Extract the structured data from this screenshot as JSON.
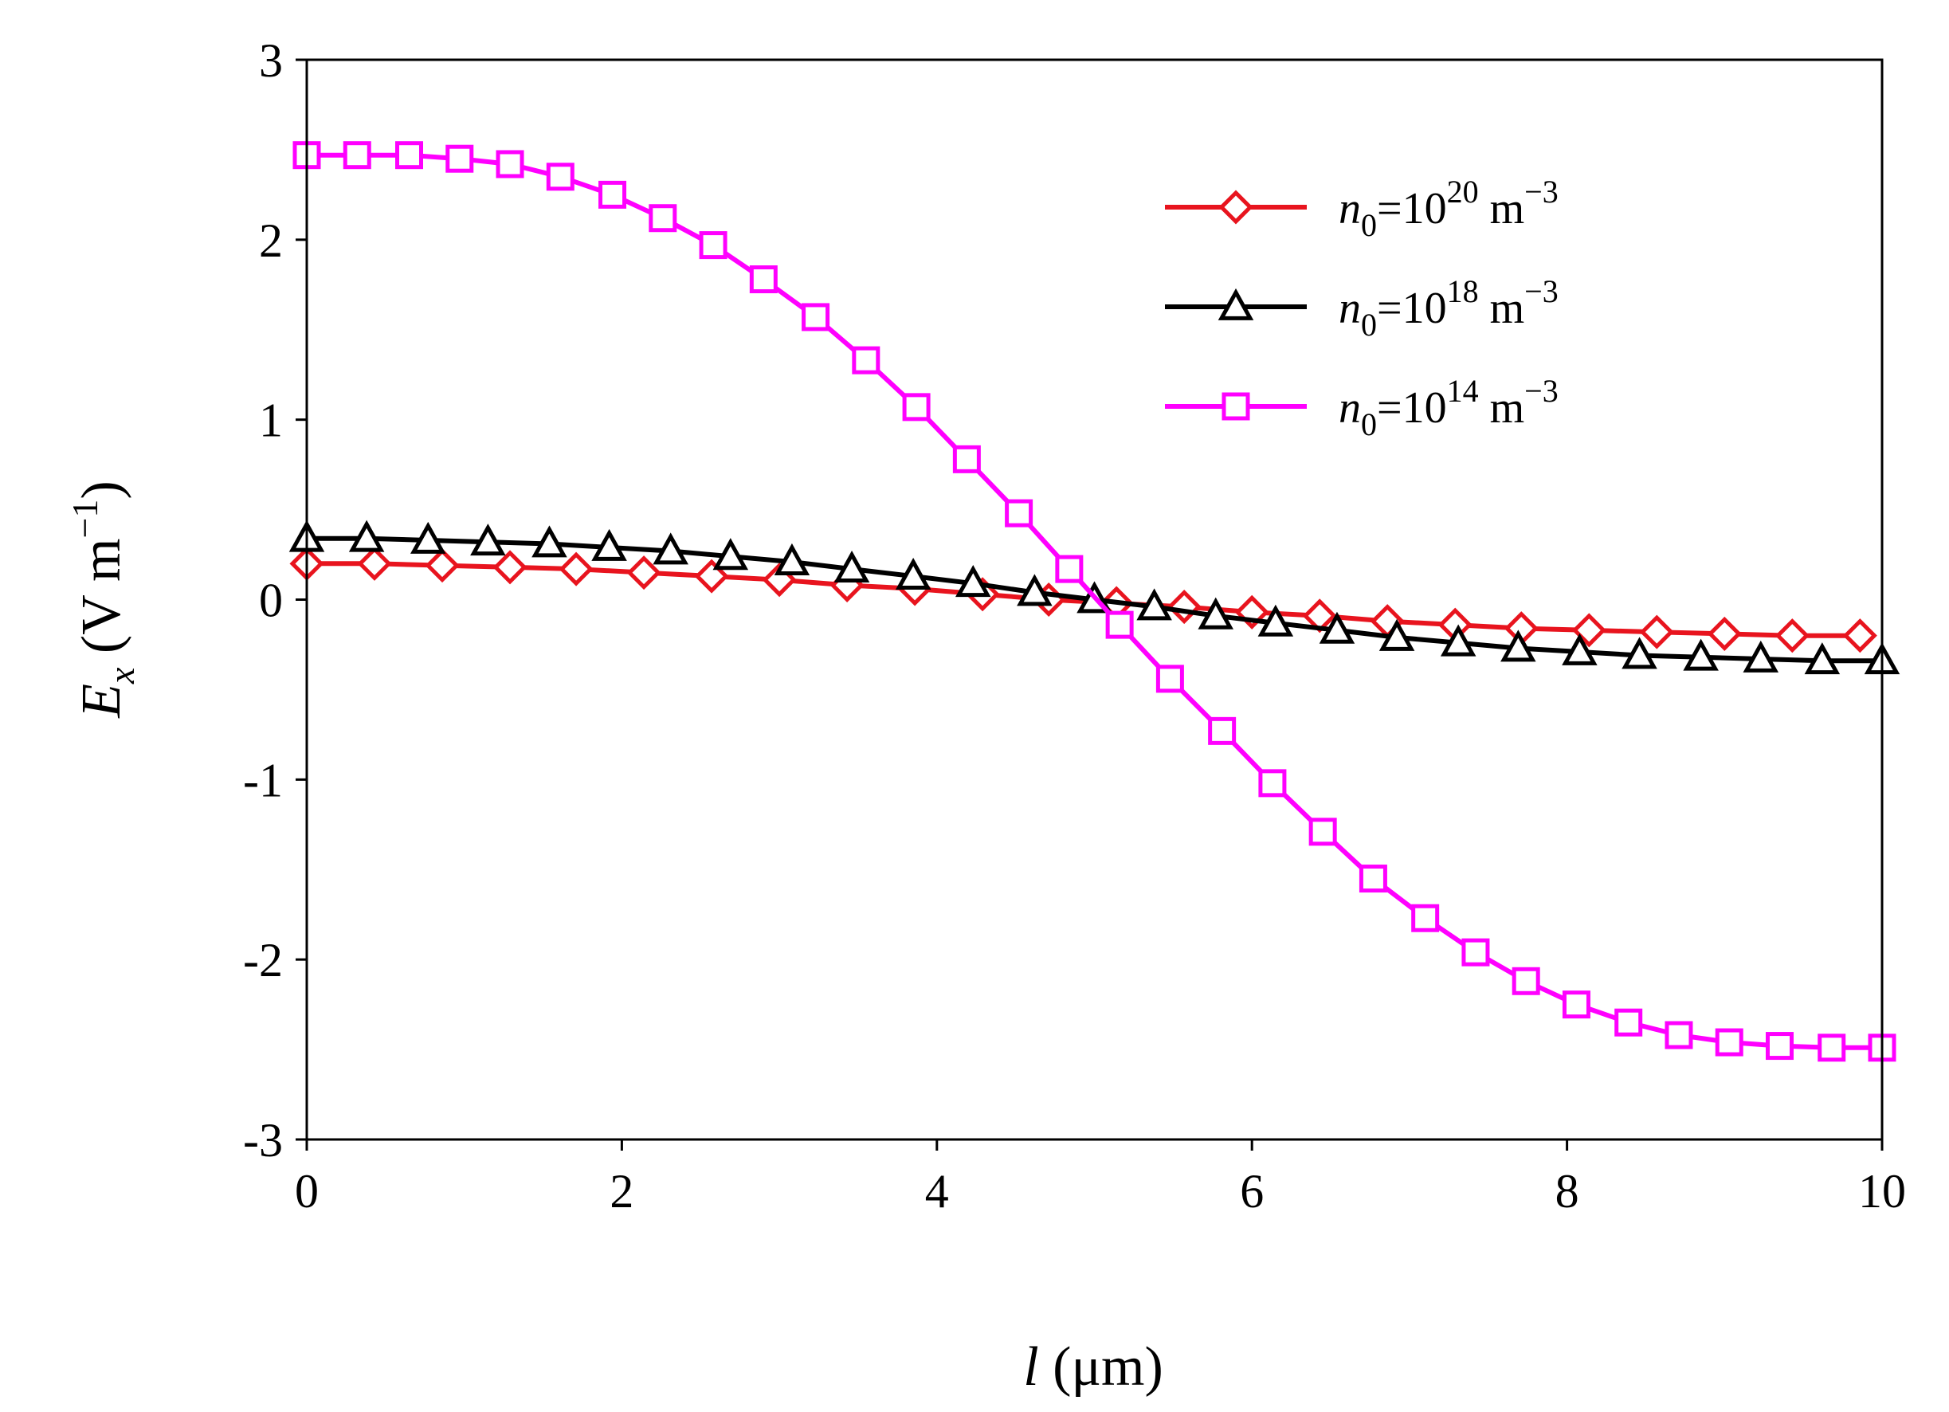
{
  "chart_data": {
    "type": "line",
    "xlim": [
      0,
      10
    ],
    "ylim": [
      -3,
      3
    ],
    "x_ticks": [
      0,
      2,
      4,
      6,
      8,
      10
    ],
    "y_ticks": [
      -3,
      -2,
      -1,
      0,
      1,
      2,
      3
    ],
    "x_tick_labels": [
      "0",
      "2",
      "4",
      "6",
      "8",
      "10"
    ],
    "y_tick_labels": [
      "-3",
      "-2",
      "-1",
      "0",
      "1",
      "2",
      "3"
    ],
    "xlabel": {
      "var": "l",
      "unit": " (μm)"
    },
    "ylabel": {
      "var": "E",
      "sub": "x",
      "unit_pre": " (V m",
      "sup": "−1",
      "unit_post": ")"
    },
    "legend_position": "top-right",
    "series": [
      {
        "name": "n0=10^20 m^-3",
        "label": {
          "var": "n",
          "sub": "0",
          "eq": "=10",
          "exp": "20",
          "unit": " m",
          "unit_exp": "−3"
        },
        "color": "#e8141e",
        "marker": "diamond",
        "x": [
          0,
          0.43,
          0.86,
          1.29,
          1.71,
          2.14,
          2.57,
          3.0,
          3.43,
          3.86,
          4.29,
          4.71,
          5.14,
          5.57,
          6.0,
          6.43,
          6.86,
          7.29,
          7.71,
          8.14,
          8.57,
          9.0,
          9.43,
          9.86
        ],
        "y": [
          0.2,
          0.2,
          0.19,
          0.18,
          0.17,
          0.15,
          0.13,
          0.11,
          0.08,
          0.06,
          0.03,
          0.0,
          -0.02,
          -0.04,
          -0.07,
          -0.09,
          -0.12,
          -0.14,
          -0.16,
          -0.17,
          -0.18,
          -0.19,
          -0.2,
          -0.2
        ]
      },
      {
        "name": "n0=10^18 m^-3",
        "label": {
          "var": "n",
          "sub": "0",
          "eq": "=10",
          "exp": "18",
          "unit": " m",
          "unit_exp": "−3"
        },
        "color": "#000000",
        "marker": "triangle",
        "x": [
          0,
          0.38,
          0.77,
          1.15,
          1.54,
          1.92,
          2.31,
          2.69,
          3.08,
          3.46,
          3.85,
          4.23,
          4.62,
          5.0,
          5.38,
          5.77,
          6.15,
          6.54,
          6.92,
          7.31,
          7.69,
          8.08,
          8.46,
          8.85,
          9.23,
          9.62,
          10.0
        ],
        "y": [
          0.34,
          0.34,
          0.33,
          0.32,
          0.31,
          0.29,
          0.27,
          0.24,
          0.21,
          0.17,
          0.13,
          0.09,
          0.04,
          0.0,
          -0.04,
          -0.09,
          -0.13,
          -0.17,
          -0.21,
          -0.24,
          -0.27,
          -0.29,
          -0.31,
          -0.32,
          -0.33,
          -0.34,
          -0.34
        ]
      },
      {
        "name": "n0=10^14 m^-3",
        "label": {
          "var": "n",
          "sub": "0",
          "eq": "=10",
          "exp": "14",
          "unit": " m",
          "unit_exp": "−3"
        },
        "color": "#ff00ff",
        "marker": "square",
        "x": [
          0,
          0.32,
          0.65,
          0.97,
          1.29,
          1.61,
          1.94,
          2.26,
          2.58,
          2.9,
          3.23,
          3.55,
          3.87,
          4.19,
          4.52,
          4.84,
          5.16,
          5.48,
          5.81,
          6.13,
          6.45,
          6.77,
          7.1,
          7.42,
          7.74,
          8.06,
          8.39,
          8.71,
          9.03,
          9.35,
          9.68,
          10.0
        ],
        "y": [
          2.47,
          2.47,
          2.47,
          2.45,
          2.42,
          2.35,
          2.25,
          2.12,
          1.97,
          1.78,
          1.57,
          1.33,
          1.07,
          0.78,
          0.48,
          0.17,
          -0.14,
          -0.44,
          -0.73,
          -1.02,
          -1.29,
          -1.55,
          -1.77,
          -1.96,
          -2.12,
          -2.25,
          -2.35,
          -2.42,
          -2.46,
          -2.48,
          -2.49,
          -2.49
        ]
      }
    ]
  }
}
